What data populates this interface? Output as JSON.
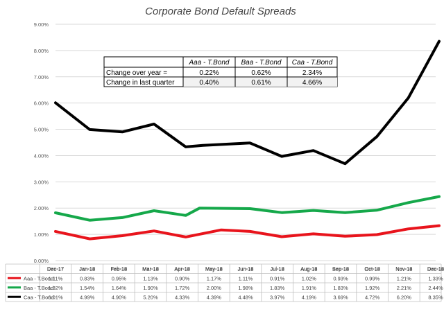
{
  "chart_data": {
    "type": "line",
    "title": "Corporate Bond Default Spreads",
    "xlabel": "",
    "ylabel": "",
    "ylim": [
      0,
      9
    ],
    "ytick_labels": [
      "0.00%",
      "1.00%",
      "2.00%",
      "3.00%",
      "4.00%",
      "5.00%",
      "6.00%",
      "7.00%",
      "8.00%",
      "9.00%"
    ],
    "categories": [
      "Dec-17",
      "Jan-18",
      "Feb-18",
      "Mar-18",
      "Apr-18",
      "May-18",
      "Jun-18",
      "Jul-18",
      "Aug-18",
      "Sep-18",
      "Oct-18",
      "Nov-18",
      "Dec-18"
    ],
    "series": [
      {
        "name": "Aaa - T.Bond",
        "color": "#e8141c",
        "x": [
          0,
          1.08,
          2.11,
          3.11,
          4.11,
          5.23,
          6.14,
          7.14,
          8.14,
          9.14,
          10.14,
          11.14,
          12.11
        ],
        "values": [
          1.11,
          0.83,
          0.95,
          1.13,
          0.9,
          1.17,
          1.11,
          0.91,
          1.02,
          0.93,
          0.99,
          1.21,
          1.33
        ],
        "labels": [
          "1.11%",
          "0.83%",
          "0.95%",
          "1.13%",
          "0.90%",
          "1.17%",
          "1.11%",
          "0.91%",
          "1.02%",
          "0.93%",
          "0.99%",
          "1.21%",
          "1.33%"
        ]
      },
      {
        "name": "Baa - T.Bond",
        "color": "#15a84a",
        "x": [
          0,
          1.08,
          2.11,
          3.11,
          4.11,
          4.55,
          6.14,
          7.14,
          8.14,
          9.14,
          10.14,
          11.14,
          12.11
        ],
        "values": [
          1.82,
          1.54,
          1.64,
          1.9,
          1.72,
          2.0,
          1.98,
          1.83,
          1.91,
          1.83,
          1.92,
          2.21,
          2.44
        ],
        "labels": [
          "1.82%",
          "1.54%",
          "1.64%",
          "1.90%",
          "1.72%",
          "2.00%",
          "1.98%",
          "1.83%",
          "1.91%",
          "1.83%",
          "1.92%",
          "2.21%",
          "2.44%"
        ]
      },
      {
        "name": "Caa - T.Bond",
        "color": "#000000",
        "x": [
          0,
          1.08,
          2.11,
          3.11,
          4.11,
          4.65,
          6.14,
          7.14,
          8.14,
          9.14,
          10.14,
          11.14,
          12.11
        ],
        "values": [
          6.01,
          4.99,
          4.9,
          5.2,
          4.33,
          4.39,
          4.48,
          3.97,
          4.19,
          3.69,
          4.72,
          6.2,
          8.35
        ],
        "labels": [
          "6.01%",
          "4.99%",
          "4.90%",
          "5.20%",
          "4.33%",
          "4.39%",
          "4.48%",
          "3.97%",
          "4.19%",
          "3.69%",
          "4.72%",
          "6.20%",
          "8.35%"
        ]
      }
    ],
    "inset_table": {
      "headers": [
        "Aaa - T.Bond",
        "Baa - T.Bond",
        "Caa - T.Bond"
      ],
      "rows": [
        {
          "label": "Change over year =",
          "values": [
            "0.22%",
            "0.62%",
            "2.34%"
          ]
        },
        {
          "label": "Change in last quarter",
          "values": [
            "0.40%",
            "0.61%",
            "4.66%"
          ]
        }
      ]
    }
  }
}
